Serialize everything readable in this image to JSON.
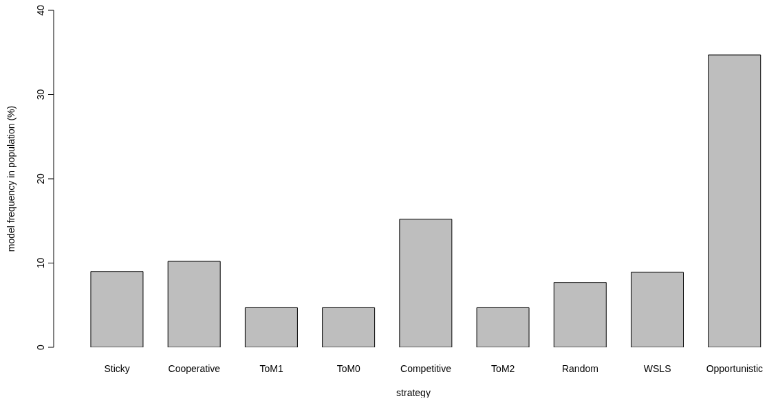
{
  "chart_data": {
    "type": "bar",
    "xlabel": "strategy",
    "ylabel": "model frequency in population (%)",
    "categories": [
      "Sticky",
      "Cooperative",
      "ToM1",
      "ToM0",
      "Competitive",
      "ToM2",
      "Random",
      "WSLS",
      "Opportunistic"
    ],
    "values": [
      9.0,
      10.2,
      4.7,
      4.7,
      15.2,
      4.7,
      7.7,
      8.9,
      34.7
    ],
    "color": "#bebebe",
    "ylim": [
      0,
      40
    ],
    "yticks": [
      0,
      10,
      20,
      30,
      40
    ],
    "grid": false,
    "legend": false
  }
}
